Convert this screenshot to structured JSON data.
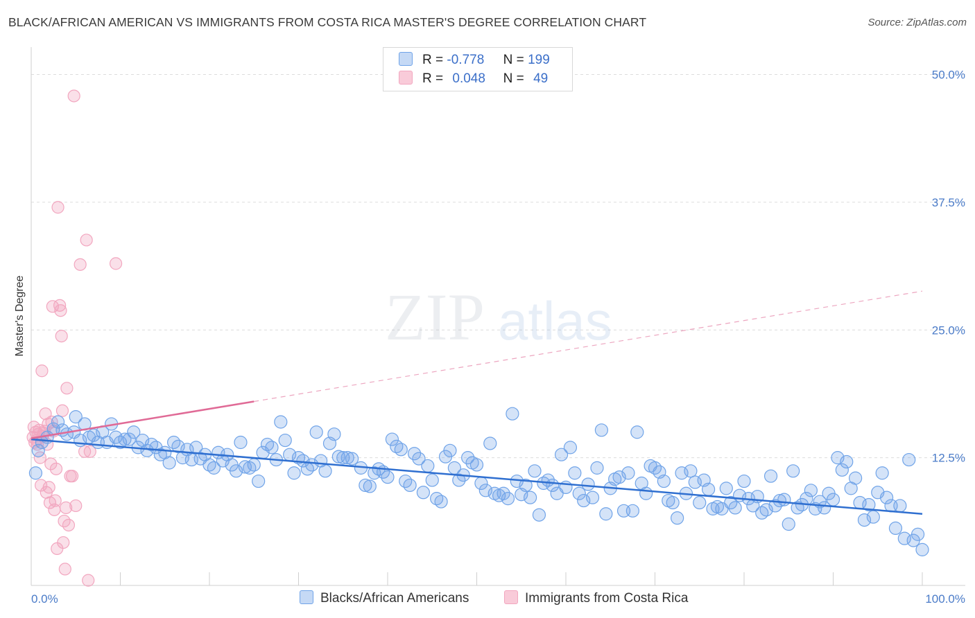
{
  "title": "BLACK/AFRICAN AMERICAN VS IMMIGRANTS FROM COSTA RICA MASTER'S DEGREE CORRELATION CHART",
  "source": "Source: ZipAtlas.com",
  "watermark": {
    "zip": "ZIP",
    "atlas": "atlas"
  },
  "legend": {
    "rows": [
      {
        "r_label": "R =",
        "r_value": "-0.778",
        "n_label": "N =",
        "n_value": "199"
      },
      {
        "r_label": "R =",
        "r_value": "0.048",
        "n_label": "N =",
        "n_value": "49"
      }
    ]
  },
  "bottom_legend": [
    "Blacks/African Americans",
    "Immigrants from Costa Rica"
  ],
  "colors": {
    "blue": "#6fa3e8",
    "blue_line": "#2f6fd0",
    "pink": "#f2a6bf",
    "pink_line": "#e06a96"
  },
  "chart_data": {
    "type": "scatter",
    "ylabel": "Master's Degree",
    "x_tick_labels": [
      "0.0%",
      "100.0%"
    ],
    "y_tick_labels": [
      "12.5%",
      "25.0%",
      "37.5%",
      "50.0%"
    ],
    "xlim": [
      0,
      100
    ],
    "ylim": [
      0,
      50
    ],
    "y_ticks": [
      12.5,
      25.0,
      37.5,
      50.0
    ],
    "grid": true,
    "legend_position": "top-center",
    "series": [
      {
        "name": "Blacks/African Americans",
        "trend": {
          "x0": 0,
          "y0": 14.3,
          "x1": 100,
          "y1": 7.0
        },
        "points": [
          [
            0.5,
            11
          ],
          [
            0.8,
            13.2
          ],
          [
            1.2,
            14
          ],
          [
            1.8,
            14.5
          ],
          [
            2.5,
            15.3
          ],
          [
            3,
            16
          ],
          [
            3.5,
            15.2
          ],
          [
            4,
            14.8
          ],
          [
            4.8,
            15
          ],
          [
            5,
            16.5
          ],
          [
            5.5,
            14.2
          ],
          [
            6,
            15.8
          ],
          [
            6.5,
            14.5
          ],
          [
            7,
            14.7
          ],
          [
            7.5,
            14
          ],
          [
            8,
            15
          ],
          [
            8.5,
            14
          ],
          [
            9,
            15.8
          ],
          [
            9.5,
            14.5
          ],
          [
            10,
            14
          ],
          [
            10.5,
            14.3
          ],
          [
            11,
            14.3
          ],
          [
            11.5,
            15
          ],
          [
            12,
            13.5
          ],
          [
            12.5,
            14.2
          ],
          [
            13,
            13.2
          ],
          [
            13.5,
            13.8
          ],
          [
            14,
            13.5
          ],
          [
            14.5,
            12.8
          ],
          [
            15,
            13
          ],
          [
            15.5,
            12
          ],
          [
            16,
            14
          ],
          [
            16.5,
            13.6
          ],
          [
            17,
            12.5
          ],
          [
            17.5,
            13.3
          ],
          [
            18,
            12.3
          ],
          [
            18.5,
            13.5
          ],
          [
            19,
            12.4
          ],
          [
            19.5,
            12.8
          ],
          [
            20,
            11.8
          ],
          [
            20.5,
            11.5
          ],
          [
            21,
            13
          ],
          [
            21.5,
            12.2
          ],
          [
            22,
            12.8
          ],
          [
            22.5,
            11.8
          ],
          [
            23,
            11.2
          ],
          [
            23.5,
            14
          ],
          [
            24,
            11.6
          ],
          [
            24.5,
            11.5
          ],
          [
            25,
            11.8
          ],
          [
            25.5,
            10.2
          ],
          [
            26,
            13
          ],
          [
            26.5,
            13.8
          ],
          [
            27,
            13.5
          ],
          [
            27.5,
            12.3
          ],
          [
            28,
            16
          ],
          [
            28.5,
            14.2
          ],
          [
            29,
            12.8
          ],
          [
            29.5,
            11
          ],
          [
            30,
            12.5
          ],
          [
            30.5,
            12.2
          ],
          [
            31,
            11.4
          ],
          [
            31.5,
            11.8
          ],
          [
            32,
            15
          ],
          [
            32.5,
            12.2
          ],
          [
            33,
            11.2
          ],
          [
            33.5,
            13.9
          ],
          [
            34,
            14.8
          ],
          [
            34.5,
            12.6
          ],
          [
            35,
            12.5
          ],
          [
            35.5,
            12.5
          ],
          [
            36,
            12.4
          ],
          [
            37,
            11.5
          ],
          [
            37.5,
            9.8
          ],
          [
            38,
            9.7
          ],
          [
            38.5,
            11
          ],
          [
            39,
            11.4
          ],
          [
            39.5,
            11.1
          ],
          [
            40,
            10.6
          ],
          [
            40.5,
            14.3
          ],
          [
            41,
            13.6
          ],
          [
            41.5,
            13.3
          ],
          [
            42,
            10.2
          ],
          [
            42.5,
            9.8
          ],
          [
            43,
            12.9
          ],
          [
            43.5,
            12.4
          ],
          [
            44,
            9.1
          ],
          [
            44.5,
            11.7
          ],
          [
            45,
            10.3
          ],
          [
            45.5,
            8.5
          ],
          [
            46,
            8.2
          ],
          [
            46.5,
            12.6
          ],
          [
            47,
            13.2
          ],
          [
            47.5,
            11.5
          ],
          [
            48,
            10.3
          ],
          [
            48.5,
            10.8
          ],
          [
            49,
            12.5
          ],
          [
            49.5,
            12
          ],
          [
            50,
            11.8
          ],
          [
            50.5,
            10
          ],
          [
            51,
            9.3
          ],
          [
            51.5,
            13.9
          ],
          [
            52,
            9
          ],
          [
            52.5,
            8.8
          ],
          [
            53,
            9
          ],
          [
            53.5,
            8.5
          ],
          [
            54,
            16.8
          ],
          [
            54.5,
            10.2
          ],
          [
            55,
            8.9
          ],
          [
            55.5,
            9.8
          ],
          [
            56,
            8.6
          ],
          [
            56.5,
            11.2
          ],
          [
            57,
            6.9
          ],
          [
            57.5,
            10
          ],
          [
            58,
            10.3
          ],
          [
            58.5,
            9.8
          ],
          [
            59,
            9
          ],
          [
            59.5,
            12.8
          ],
          [
            60,
            9.6
          ],
          [
            60.5,
            13.5
          ],
          [
            61,
            11
          ],
          [
            61.5,
            9
          ],
          [
            62,
            8.3
          ],
          [
            62.5,
            9.9
          ],
          [
            63,
            8.6
          ],
          [
            63.5,
            11.5
          ],
          [
            64,
            15.2
          ],
          [
            64.5,
            7
          ],
          [
            65,
            9.5
          ],
          [
            65.5,
            10.4
          ],
          [
            66,
            10.6
          ],
          [
            66.5,
            7.3
          ],
          [
            67,
            11
          ],
          [
            67.5,
            7.3
          ],
          [
            68,
            15
          ],
          [
            68.5,
            10
          ],
          [
            69,
            9
          ],
          [
            69.5,
            11.7
          ],
          [
            70,
            11.5
          ],
          [
            70.5,
            11.1
          ],
          [
            71,
            10.2
          ],
          [
            71.5,
            8.3
          ],
          [
            72,
            8.1
          ],
          [
            72.5,
            6.6
          ],
          [
            73,
            11
          ],
          [
            73.5,
            9
          ],
          [
            74,
            11.2
          ],
          [
            74.5,
            10.1
          ],
          [
            75,
            8.1
          ],
          [
            75.5,
            10.3
          ],
          [
            76,
            9.4
          ],
          [
            76.5,
            7.5
          ],
          [
            77,
            7.7
          ],
          [
            77.5,
            7.5
          ],
          [
            78,
            9.5
          ],
          [
            78.5,
            8.1
          ],
          [
            79,
            7.6
          ],
          [
            79.5,
            8.8
          ],
          [
            80,
            10.2
          ],
          [
            80.5,
            8.5
          ],
          [
            81,
            7.8
          ],
          [
            81.5,
            8.7
          ],
          [
            82,
            7.1
          ],
          [
            82.5,
            7.4
          ],
          [
            83,
            10.7
          ],
          [
            83.5,
            7.8
          ],
          [
            84,
            8.3
          ],
          [
            84.5,
            8.4
          ],
          [
            85,
            6
          ],
          [
            85.5,
            11.2
          ],
          [
            86,
            7.6
          ],
          [
            86.5,
            7.9
          ],
          [
            87,
            8.5
          ],
          [
            87.5,
            9.3
          ],
          [
            88,
            7.5
          ],
          [
            88.5,
            8.2
          ],
          [
            89,
            7.6
          ],
          [
            89.5,
            9
          ],
          [
            90,
            8.4
          ],
          [
            90.5,
            12.5
          ],
          [
            91,
            11.3
          ],
          [
            91.5,
            12.1
          ],
          [
            92,
            9.5
          ],
          [
            92.5,
            10.5
          ],
          [
            93,
            8.1
          ],
          [
            93.5,
            6.4
          ],
          [
            94,
            7.9
          ],
          [
            94.5,
            6.7
          ],
          [
            95,
            9.1
          ],
          [
            95.5,
            11
          ],
          [
            96,
            8.6
          ],
          [
            96.5,
            7.8
          ],
          [
            97,
            5.6
          ],
          [
            97.5,
            7.8
          ],
          [
            98,
            4.6
          ],
          [
            98.5,
            12.3
          ],
          [
            99,
            4.4
          ],
          [
            99.5,
            5
          ],
          [
            100,
            3.5
          ]
        ]
      },
      {
        "name": "Immigrants from Costa Rica",
        "trend": {
          "x0": 0,
          "y0": 14.4,
          "x1": 100,
          "y1": 28.8,
          "solid_until_x": 25
        },
        "points": [
          [
            0.2,
            14.5
          ],
          [
            0.3,
            15.5
          ],
          [
            0.4,
            14
          ],
          [
            0.5,
            15
          ],
          [
            0.6,
            14.2
          ],
          [
            0.7,
            13.8
          ],
          [
            0.8,
            14.8
          ],
          [
            0.9,
            15.2
          ],
          [
            1,
            12.5
          ],
          [
            1.1,
            9.8
          ],
          [
            1.2,
            21
          ],
          [
            1.3,
            14.6
          ],
          [
            1.4,
            14.9
          ],
          [
            1.5,
            15.1
          ],
          [
            1.6,
            16.8
          ],
          [
            1.7,
            9.1
          ],
          [
            1.8,
            13.8
          ],
          [
            1.9,
            15.8
          ],
          [
            2,
            9.6
          ],
          [
            2.1,
            8.1
          ],
          [
            2.2,
            11.9
          ],
          [
            2.3,
            16
          ],
          [
            2.4,
            27.3
          ],
          [
            2.5,
            15.1
          ],
          [
            2.6,
            7.4
          ],
          [
            2.7,
            8.3
          ],
          [
            2.8,
            11.4
          ],
          [
            2.9,
            3.6
          ],
          [
            3,
            37
          ],
          [
            3.2,
            27.4
          ],
          [
            3.3,
            26.9
          ],
          [
            3.4,
            24.4
          ],
          [
            3.5,
            17.1
          ],
          [
            3.6,
            4.2
          ],
          [
            3.7,
            6.3
          ],
          [
            3.8,
            1.6
          ],
          [
            3.9,
            7.6
          ],
          [
            4,
            19.3
          ],
          [
            4.2,
            5.9
          ],
          [
            4.4,
            10.7
          ],
          [
            4.6,
            10.7
          ],
          [
            4.8,
            47.9
          ],
          [
            5,
            7.8
          ],
          [
            5.5,
            31.4
          ],
          [
            6,
            13.1
          ],
          [
            6.2,
            33.8
          ],
          [
            6.4,
            0.5
          ],
          [
            6.6,
            13.1
          ],
          [
            9.5,
            31.5
          ]
        ]
      }
    ]
  }
}
